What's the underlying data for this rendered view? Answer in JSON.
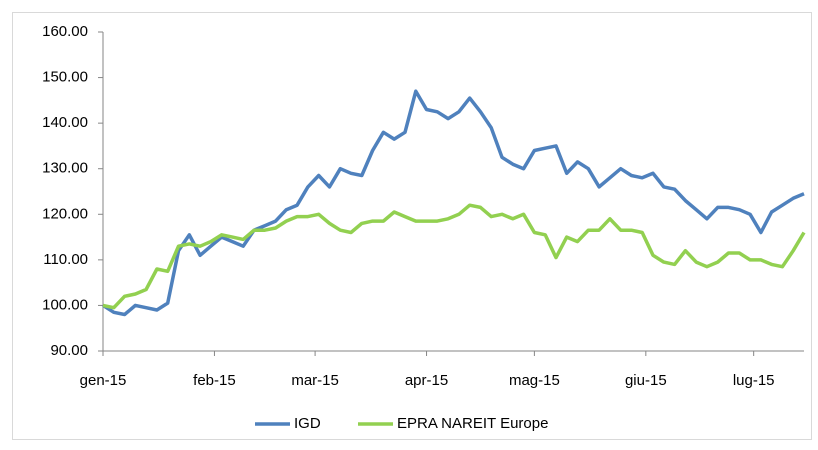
{
  "chart_data": {
    "type": "line",
    "x": [
      0,
      3,
      6,
      9,
      12,
      15,
      18,
      21,
      24,
      27,
      30,
      33,
      36,
      39,
      42,
      45,
      48,
      51,
      54,
      57,
      60,
      63,
      66,
      69,
      72,
      75,
      78,
      81,
      84,
      87,
      90,
      93,
      96,
      99,
      102,
      105,
      108,
      111,
      114,
      117,
      120,
      123,
      126,
      129,
      132,
      135,
      138,
      141,
      144,
      147,
      150,
      153,
      156,
      159,
      162,
      165,
      168,
      171,
      174,
      177,
      180,
      183,
      186,
      189,
      192,
      195
    ],
    "series": [
      {
        "name": "IGD",
        "color": "#4f81bd",
        "values": [
          100,
          98.5,
          98,
          100,
          99.5,
          99,
          100.5,
          112,
          115.5,
          111,
          113,
          115,
          114,
          113,
          116.5,
          117.5,
          118.5,
          121,
          122,
          126,
          128.5,
          126,
          130,
          129,
          128.5,
          134,
          138,
          136.5,
          138,
          147,
          143,
          142.5,
          141,
          142.5,
          145.5,
          142.5,
          139,
          132.5,
          131,
          130,
          134,
          134.5,
          135,
          129,
          131.5,
          130,
          126,
          128,
          130,
          128.5,
          128,
          129,
          126,
          125.5,
          123,
          121,
          119,
          121.5,
          121.5,
          121,
          120,
          116,
          120.5,
          122,
          123.5,
          124.5
        ]
      },
      {
        "name": "EPRA NAREIT Europe",
        "color": "#92d050",
        "values": [
          100,
          99.5,
          102,
          102.5,
          103.5,
          108,
          107.5,
          113,
          113.5,
          113,
          114,
          115.5,
          115,
          114.5,
          116.5,
          116.5,
          117,
          118.5,
          119.5,
          119.5,
          120,
          118,
          116.5,
          116,
          118,
          118.5,
          118.5,
          120.5,
          119.5,
          118.5,
          118.5,
          118.5,
          119,
          120,
          122,
          121.5,
          119.5,
          120,
          119,
          120,
          116,
          115.5,
          110.5,
          115,
          114,
          116.5,
          116.5,
          119,
          116.5,
          116.5,
          116,
          111,
          109.5,
          109,
          112,
          109.5,
          108.5,
          109.5,
          111.5,
          111.5,
          110,
          110,
          109,
          108.5,
          112,
          116
        ]
      }
    ],
    "xlim": [
      0,
      195
    ],
    "xticks": [
      {
        "value": 0,
        "label": "gen-15"
      },
      {
        "value": 31,
        "label": "feb-15"
      },
      {
        "value": 59,
        "label": "mar-15"
      },
      {
        "value": 90,
        "label": "apr-15"
      },
      {
        "value": 120,
        "label": "mag-15"
      },
      {
        "value": 151,
        "label": "giu-15"
      },
      {
        "value": 181,
        "label": "lug-15"
      }
    ],
    "ylim": [
      90,
      160
    ],
    "yticks": [
      {
        "value": 90,
        "label": "90.00"
      },
      {
        "value": 100,
        "label": "100.00"
      },
      {
        "value": 110,
        "label": "110.00"
      },
      {
        "value": 120,
        "label": "120.00"
      },
      {
        "value": 130,
        "label": "130.00"
      },
      {
        "value": 140,
        "label": "140.00"
      },
      {
        "value": 150,
        "label": "150.00"
      },
      {
        "value": 160,
        "label": "160.00"
      }
    ],
    "legend": "bottom"
  }
}
